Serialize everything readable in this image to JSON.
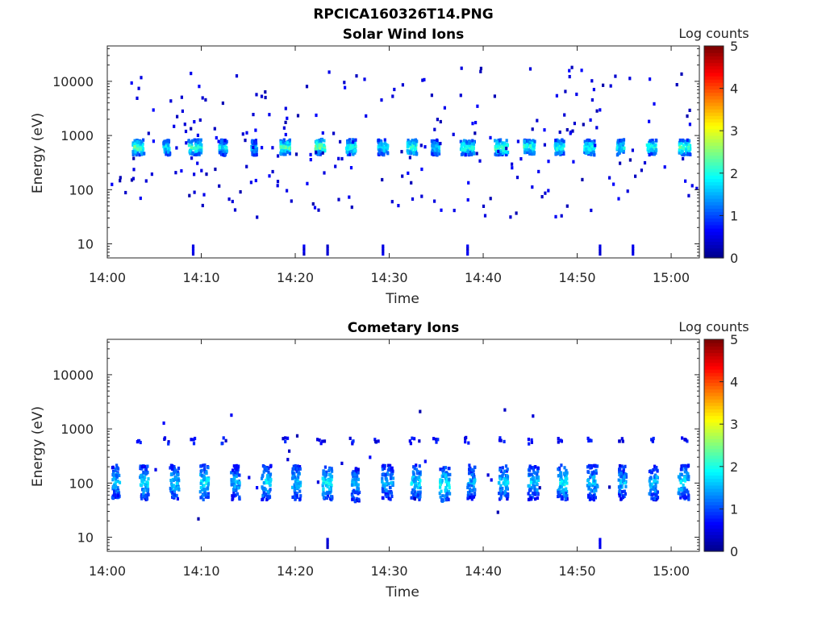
{
  "figure": {
    "title": "RPCICA160326T14.PNG"
  },
  "colors": {
    "background": "#ffffff",
    "axis": "#262626",
    "colormap": [
      "#00008f",
      "#0000ff",
      "#0080ff",
      "#00ffff",
      "#80ff80",
      "#ffff00",
      "#ff8000",
      "#ff0000",
      "#800000"
    ]
  },
  "chart_data": [
    {
      "type": "heatmap",
      "title": "Solar Wind Ions",
      "xlabel": "Time",
      "ylabel": "Energy (eV)",
      "x_ticks": [
        "14:00",
        "14:10",
        "14:20",
        "14:30",
        "14:40",
        "14:50",
        "15:00"
      ],
      "x_tick_minutes": [
        0,
        10,
        20,
        30,
        40,
        50,
        60
      ],
      "xlim_minutes": [
        0,
        63
      ],
      "y_scale": "log",
      "ylim": [
        5.5,
        45000
      ],
      "y_ticks": [
        "10",
        "100",
        "1000",
        "10000"
      ],
      "y_tick_values": [
        10,
        100,
        1000,
        10000
      ],
      "colorbar": {
        "label": "Log counts",
        "range": [
          0,
          5
        ],
        "ticks": [
          "0",
          "1",
          "2",
          "3",
          "4",
          "5"
        ]
      },
      "clusters": [
        {
          "minute": 3.2,
          "energy": 650,
          "width": 1.2,
          "intensity": 2.3
        },
        {
          "minute": 6.2,
          "energy": 650,
          "width": 0.7,
          "intensity": 1.9
        },
        {
          "minute": 9.2,
          "energy": 650,
          "width": 1.4,
          "intensity": 2.2
        },
        {
          "minute": 12.2,
          "energy": 640,
          "width": 0.8,
          "intensity": 1.8
        },
        {
          "minute": 15.5,
          "energy": 640,
          "width": 0.6,
          "intensity": 1.7
        },
        {
          "minute": 18.8,
          "energy": 650,
          "width": 1.0,
          "intensity": 2.3
        },
        {
          "minute": 22.5,
          "energy": 660,
          "width": 1.1,
          "intensity": 2.5
        },
        {
          "minute": 25.8,
          "energy": 650,
          "width": 1.0,
          "intensity": 2.1
        },
        {
          "minute": 29.2,
          "energy": 650,
          "width": 1.1,
          "intensity": 1.9
        },
        {
          "minute": 32.3,
          "energy": 650,
          "width": 1.0,
          "intensity": 2.2
        },
        {
          "minute": 34.8,
          "energy": 640,
          "width": 0.8,
          "intensity": 1.8
        },
        {
          "minute": 38.2,
          "energy": 650,
          "width": 1.5,
          "intensity": 2.1
        },
        {
          "minute": 41.8,
          "energy": 650,
          "width": 1.4,
          "intensity": 2.3
        },
        {
          "minute": 44.8,
          "energy": 660,
          "width": 1.2,
          "intensity": 2.1
        },
        {
          "minute": 48.0,
          "energy": 650,
          "width": 1.0,
          "intensity": 2.0
        },
        {
          "minute": 51.2,
          "energy": 640,
          "width": 1.1,
          "intensity": 2.1
        },
        {
          "minute": 54.5,
          "energy": 650,
          "width": 0.8,
          "intensity": 1.9
        },
        {
          "minute": 57.8,
          "energy": 650,
          "width": 1.0,
          "intensity": 2.1
        },
        {
          "minute": 61.3,
          "energy": 650,
          "width": 1.2,
          "intensity": 2.2
        }
      ],
      "noise_count": 240,
      "noise_energy_range": [
        30,
        20000
      ],
      "low_energy_streaks_minutes": [
        9.0,
        20.8,
        23.3,
        29.2,
        38.2,
        52.3,
        55.8
      ]
    },
    {
      "type": "heatmap",
      "title": "Cometary Ions",
      "xlabel": "Time",
      "ylabel": "Energy (eV)",
      "x_ticks": [
        "14:00",
        "14:10",
        "14:20",
        "14:30",
        "14:40",
        "14:50",
        "15:00"
      ],
      "x_tick_minutes": [
        0,
        10,
        20,
        30,
        40,
        50,
        60
      ],
      "xlim_minutes": [
        0,
        63
      ],
      "y_scale": "log",
      "ylim": [
        5.5,
        45000
      ],
      "y_ticks": [
        "10",
        "100",
        "1000",
        "10000"
      ],
      "y_tick_values": [
        10,
        100,
        1000,
        10000
      ],
      "colorbar": {
        "label": "Log counts",
        "range": [
          0,
          5
        ],
        "ticks": [
          "0",
          "1",
          "2",
          "3",
          "4",
          "5"
        ]
      },
      "clusters": [
        {
          "minute": 0.8,
          "energy": 110,
          "width": 0.8,
          "intensity": 1.6
        },
        {
          "minute": 3.8,
          "energy": 110,
          "width": 0.9,
          "intensity": 1.7
        },
        {
          "minute": 7.0,
          "energy": 110,
          "width": 1.0,
          "intensity": 1.6
        },
        {
          "minute": 10.2,
          "energy": 110,
          "width": 0.9,
          "intensity": 1.8
        },
        {
          "minute": 13.5,
          "energy": 110,
          "width": 0.9,
          "intensity": 1.5
        },
        {
          "minute": 16.8,
          "energy": 110,
          "width": 1.0,
          "intensity": 1.7
        },
        {
          "minute": 20.0,
          "energy": 110,
          "width": 0.9,
          "intensity": 1.6
        },
        {
          "minute": 23.3,
          "energy": 110,
          "width": 1.0,
          "intensity": 1.8
        },
        {
          "minute": 26.3,
          "energy": 100,
          "width": 0.8,
          "intensity": 1.4
        },
        {
          "minute": 29.7,
          "energy": 110,
          "width": 1.2,
          "intensity": 1.5
        },
        {
          "minute": 32.7,
          "energy": 110,
          "width": 1.0,
          "intensity": 1.7
        },
        {
          "minute": 35.8,
          "energy": 100,
          "width": 1.1,
          "intensity": 1.9
        },
        {
          "minute": 38.6,
          "energy": 110,
          "width": 0.8,
          "intensity": 1.5
        },
        {
          "minute": 42.0,
          "energy": 110,
          "width": 1.0,
          "intensity": 1.6
        },
        {
          "minute": 45.2,
          "energy": 110,
          "width": 1.1,
          "intensity": 1.6
        },
        {
          "minute": 48.3,
          "energy": 110,
          "width": 1.0,
          "intensity": 1.8
        },
        {
          "minute": 51.5,
          "energy": 110,
          "width": 1.1,
          "intensity": 1.6
        },
        {
          "minute": 54.7,
          "energy": 110,
          "width": 0.8,
          "intensity": 1.5
        },
        {
          "minute": 58.0,
          "energy": 110,
          "width": 0.9,
          "intensity": 1.6
        },
        {
          "minute": 61.2,
          "energy": 110,
          "width": 1.1,
          "intensity": 1.7
        }
      ],
      "secondary_band_energy": 650,
      "secondary_band_minutes": [
        3.2,
        6.2,
        9.0,
        12.2,
        18.8,
        22.5,
        25.8,
        28.6,
        32.3,
        34.8,
        38.2,
        41.8,
        44.8,
        48.0,
        51.2,
        54.5,
        57.8,
        61.3
      ],
      "noise_count": 25,
      "noise_energy_range": [
        15,
        2500
      ],
      "low_energy_streaks_minutes": [
        23.3,
        52.3
      ]
    }
  ]
}
